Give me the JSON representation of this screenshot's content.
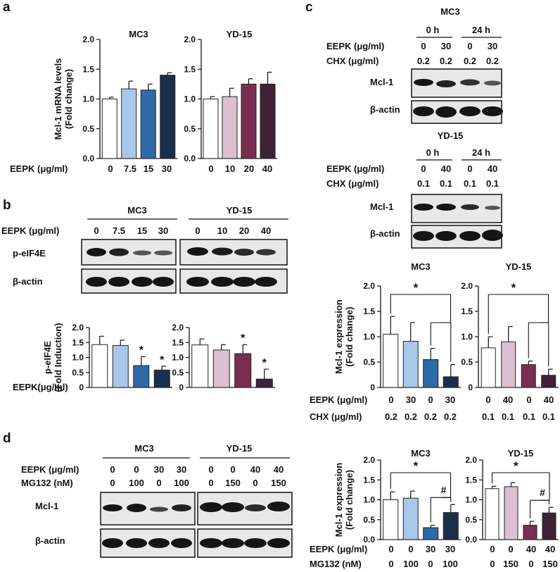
{
  "colors": {
    "white": "#ffffff",
    "light_blue": "#a8c8ea",
    "mid_blue": "#2f6aa8",
    "navy": "#1b2e4c",
    "light_pink": "#dcbfd0",
    "maroon": "#7c2d52",
    "dark_plum": "#3d2236",
    "blot_band": "#151515",
    "blot_bg": "#e6e6e6"
  },
  "panel_letters": [
    "a",
    "b",
    "c",
    "d"
  ],
  "panel_a": {
    "eepk_label": "EEPK (μg/ml)",
    "mc3_doses": [
      "0",
      "7.5",
      "15",
      "30"
    ],
    "yd15_doses": [
      "0",
      "10",
      "20",
      "40"
    ]
  },
  "panel_b": {
    "mc3_title": "MC3",
    "yd15_title": "YD-15",
    "eepk_label": "EEPK (μg/ml)",
    "mc3_doses": [
      "0",
      "7.5",
      "15",
      "30"
    ],
    "yd15_doses": [
      "0",
      "10",
      "20",
      "40"
    ],
    "blot_labels": [
      "p-eIF4E",
      "β-actin"
    ],
    "chart_eepk_label": "EEPK(μg/ml)"
  },
  "panel_c": {
    "mc3_title": "MC3",
    "yd15_title": "YD-15",
    "time_labels": [
      "0 h",
      "24 h"
    ],
    "eepk_label": "EEPK (μg/ml)",
    "chx_label": "CHX (μg/ml)",
    "mc3_eepk": [
      "0",
      "30",
      "0",
      "30"
    ],
    "mc3_chx": [
      "0.2",
      "0.2",
      "0.2",
      "0.2"
    ],
    "yd15_eepk": [
      "0",
      "40",
      "0",
      "40"
    ],
    "yd15_chx": [
      "0.1",
      "0.1",
      "0.1",
      "0.1"
    ],
    "blot_labels": [
      "Mcl-1",
      "β-actin"
    ]
  },
  "panel_d": {
    "mc3_title": "MC3",
    "yd15_title": "YD-15",
    "eepk_label": "EEPK (μg/ml)",
    "mg132_label": "MG132 (nM)",
    "mc3_eepk": [
      "0",
      "0",
      "30",
      "30"
    ],
    "mc3_mg": [
      "0",
      "100",
      "0",
      "100"
    ],
    "yd15_eepk": [
      "0",
      "0",
      "40",
      "40"
    ],
    "yd15_mg": [
      "0",
      "150",
      "0",
      "150"
    ],
    "blot_labels": [
      "Mcl-1",
      "β-actin"
    ]
  },
  "chart_data": [
    {
      "id": "a1",
      "type": "bar",
      "title": "MC3",
      "ylabel": "Mcl-1 mRNA levels\n(Fold change)",
      "ylim": [
        0,
        2.0
      ],
      "categories": [
        "0",
        "7.5",
        "15",
        "30"
      ],
      "values": [
        1.0,
        1.17,
        1.15,
        1.4
      ],
      "errors": [
        0.03,
        0.13,
        0.1,
        0.04
      ],
      "colors": [
        "#ffffff",
        "#a8c8ea",
        "#2f6aa8",
        "#1b2e4c"
      ],
      "yticks": [
        "0.0",
        "0.5",
        "1.0",
        "1.5",
        "2.0"
      ]
    },
    {
      "id": "a2",
      "type": "bar",
      "title": "YD-15",
      "ylabel": "",
      "ylim": [
        0,
        2.0
      ],
      "categories": [
        "0",
        "10",
        "20",
        "40"
      ],
      "values": [
        1.0,
        1.04,
        1.25,
        1.25
      ],
      "errors": [
        0.04,
        0.14,
        0.09,
        0.2
      ],
      "colors": [
        "#ffffff",
        "#dcbfd0",
        "#7c2d52",
        "#3d2236"
      ],
      "yticks": [
        "0.0",
        "0.5",
        "1.0",
        "1.5",
        "2.0"
      ]
    },
    {
      "id": "b1",
      "type": "bar",
      "title": "",
      "ylabel": "p-eIF4E\n(Fold Induction)",
      "ylim": [
        0,
        2.0
      ],
      "categories": [
        "0",
        "7.5",
        "15",
        "30"
      ],
      "values": [
        1.43,
        1.4,
        0.73,
        0.58
      ],
      "errors": [
        0.28,
        0.18,
        0.3,
        0.13
      ],
      "colors": [
        "#ffffff",
        "#a8c8ea",
        "#2f6aa8",
        "#1b2e4c"
      ],
      "significance": [
        "",
        "",
        "*",
        "*"
      ],
      "yticks": [
        "0",
        "0.5",
        "1.0",
        "1.5",
        "2.0"
      ]
    },
    {
      "id": "b2",
      "type": "bar",
      "title": "",
      "ylabel": "",
      "ylim": [
        0,
        2.0
      ],
      "categories": [
        "0",
        "10",
        "20",
        "40"
      ],
      "values": [
        1.42,
        1.25,
        1.13,
        0.28
      ],
      "errors": [
        0.2,
        0.18,
        0.3,
        0.33
      ],
      "colors": [
        "#ffffff",
        "#dcbfd0",
        "#7c2d52",
        "#3d2236"
      ],
      "significance": [
        "",
        "",
        "*",
        "*"
      ],
      "yticks": [
        "0",
        "0.5",
        "1.0",
        "1.5",
        "2.0"
      ]
    },
    {
      "id": "c1",
      "type": "bar",
      "title": "MC3",
      "ylabel": "Mcl-1 expression\n(Fold change)",
      "ylim": [
        0,
        2.0
      ],
      "categories": [
        "0",
        "30",
        "0",
        "30"
      ],
      "values": [
        1.05,
        0.91,
        0.55,
        0.21
      ],
      "errors": [
        0.35,
        0.37,
        0.22,
        0.24
      ],
      "colors": [
        "#ffffff",
        "#a8c8ea",
        "#2f6aa8",
        "#1b2e4c"
      ],
      "bracket_label": "*",
      "yticks": [
        "0",
        "0.5",
        "1.0",
        "1.5",
        "2.0"
      ]
    },
    {
      "id": "c2",
      "type": "bar",
      "title": "YD-15",
      "ylabel": "",
      "ylim": [
        0,
        2.0
      ],
      "categories": [
        "0",
        "40",
        "0",
        "40"
      ],
      "values": [
        0.78,
        0.9,
        0.45,
        0.24
      ],
      "errors": [
        0.22,
        0.3,
        0.07,
        0.12
      ],
      "colors": [
        "#ffffff",
        "#dcbfd0",
        "#7c2d52",
        "#3d2236"
      ],
      "bracket_label": "*",
      "yticks": [
        "0",
        "0.5",
        "1.0",
        "1.5",
        "2.0"
      ]
    },
    {
      "id": "d1",
      "type": "bar",
      "title": "MC3",
      "ylabel": "Mcl-1 expression\n(Fold change)",
      "ylim": [
        0,
        2.0
      ],
      "categories": [
        "0",
        "0",
        "30",
        "30"
      ],
      "values": [
        1.0,
        1.04,
        0.3,
        0.68
      ],
      "errors": [
        0.2,
        0.18,
        0.06,
        0.2
      ],
      "colors": [
        "#ffffff",
        "#a8c8ea",
        "#2f6aa8",
        "#1b2e4c"
      ],
      "bracket_label": "*",
      "bracket2_label": "#",
      "yticks": [
        "0.0",
        "0.5",
        "1.0",
        "1.5",
        "2.0"
      ]
    },
    {
      "id": "d2",
      "type": "bar",
      "title": "YD-15",
      "ylabel": "",
      "ylim": [
        0,
        2.0
      ],
      "categories": [
        "0",
        "0",
        "40",
        "40"
      ],
      "values": [
        1.28,
        1.33,
        0.36,
        0.67
      ],
      "errors": [
        0.06,
        0.1,
        0.1,
        0.14
      ],
      "colors": [
        "#ffffff",
        "#dcbfd0",
        "#7c2d52",
        "#3d2236"
      ],
      "bracket_label": "*",
      "bracket2_label": "#",
      "yticks": [
        "0.0",
        "0.5",
        "1.0",
        "1.5",
        "2.0"
      ]
    }
  ]
}
